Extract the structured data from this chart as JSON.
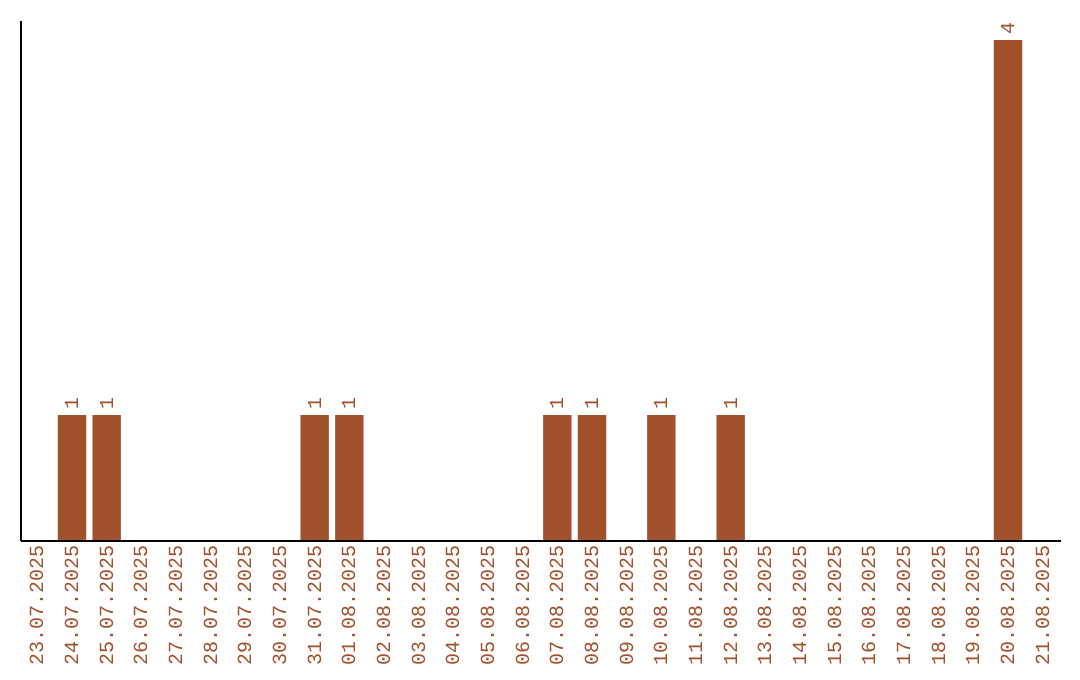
{
  "chart_data": {
    "type": "bar",
    "categories": [
      "23.07.2025",
      "24.07.2025",
      "25.07.2025",
      "26.07.2025",
      "27.07.2025",
      "28.07.2025",
      "29.07.2025",
      "30.07.2025",
      "31.07.2025",
      "01.08.2025",
      "02.08.2025",
      "03.08.2025",
      "04.08.2025",
      "05.08.2025",
      "06.08.2025",
      "07.08.2025",
      "08.08.2025",
      "09.08.2025",
      "10.08.2025",
      "11.08.2025",
      "12.08.2025",
      "13.08.2025",
      "14.08.2025",
      "15.08.2025",
      "16.08.2025",
      "17.08.2025",
      "18.08.2025",
      "19.08.2025",
      "20.08.2025",
      "21.08.2025"
    ],
    "values": [
      0,
      1,
      1,
      0,
      0,
      0,
      0,
      0,
      1,
      1,
      0,
      0,
      0,
      0,
      0,
      1,
      1,
      0,
      1,
      0,
      1,
      0,
      0,
      0,
      0,
      0,
      0,
      0,
      4,
      0
    ],
    "value_labels": [
      null,
      "1",
      "1",
      null,
      null,
      null,
      null,
      null,
      "1",
      "1",
      null,
      null,
      null,
      null,
      null,
      "1",
      "1",
      null,
      "1",
      null,
      "1",
      null,
      null,
      null,
      null,
      null,
      null,
      null,
      "4",
      null
    ],
    "color": "#a0522d",
    "ylim": [
      0,
      4.16
    ],
    "tick_labels": "x",
    "grid": false
  }
}
